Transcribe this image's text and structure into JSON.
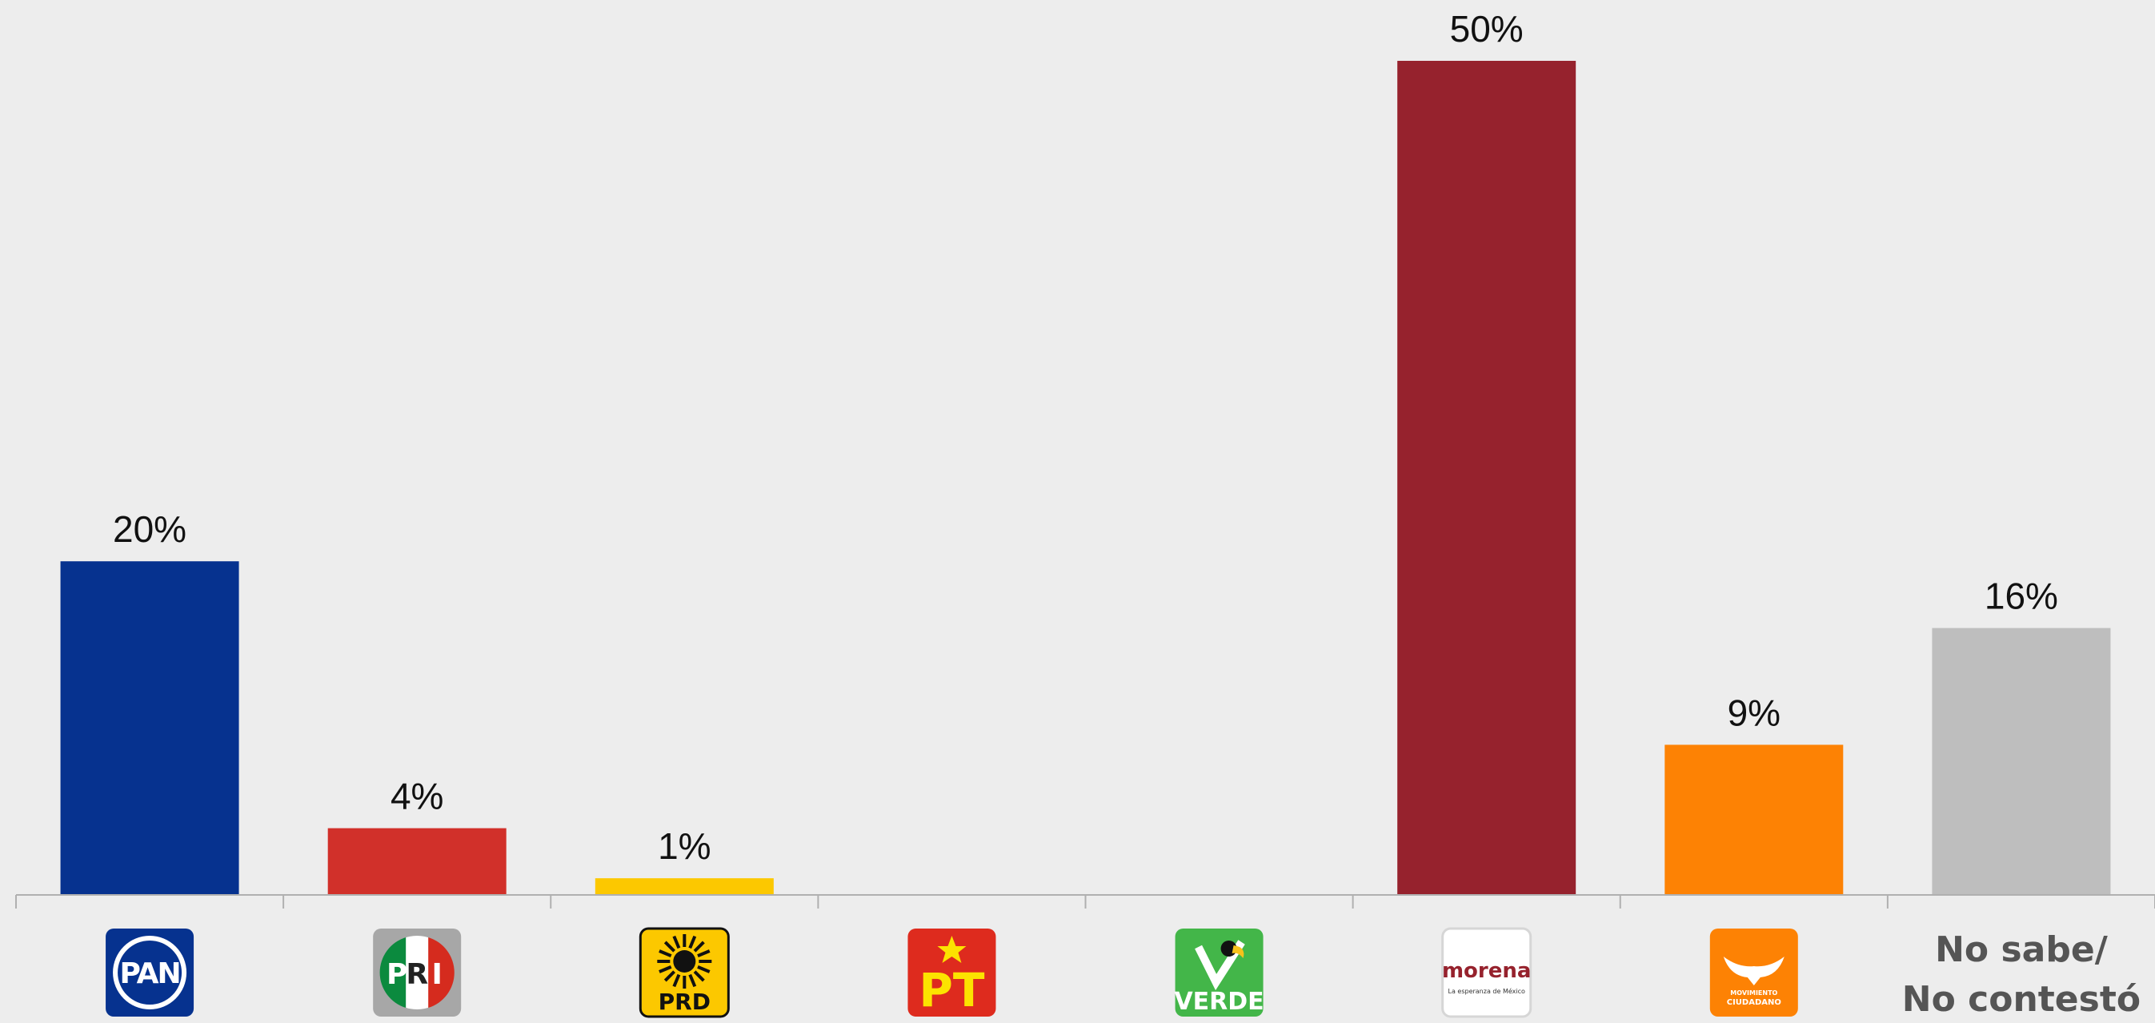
{
  "chart_data": {
    "type": "bar",
    "categories": [
      "PAN",
      "PRI",
      "PRD",
      "PT",
      "VERDE",
      "morena",
      "MOVIMIENTO CIUDADANO",
      "No sabe/ No contestó"
    ],
    "values": [
      20,
      4,
      1,
      null,
      null,
      50,
      9,
      16
    ],
    "value_labels": [
      "20%",
      "4%",
      "1%",
      "",
      "",
      "50%",
      "9%",
      "16%"
    ],
    "colors": [
      "#06328f",
      "#d1302a",
      "#fcc800",
      "#de2b1e",
      "#43b649",
      "#96222d",
      "#fd8204",
      "#bebebe"
    ],
    "ylim": [
      0,
      50
    ],
    "grid": false,
    "legend": "none",
    "category_logos": [
      {
        "type": "logo",
        "icon": "pan-logo",
        "text": "PAN",
        "color": "#06328f"
      },
      {
        "type": "logo",
        "icon": "pri-logo",
        "text": "PRI",
        "color": "#a7a7a7"
      },
      {
        "type": "logo",
        "icon": "prd-logo",
        "text": "PRD",
        "color": "#fcc800"
      },
      {
        "type": "logo",
        "icon": "pt-logo",
        "text": "PT",
        "color": "#de2b1e"
      },
      {
        "type": "logo",
        "icon": "verde-logo",
        "text": "VERDE",
        "color": "#43b649"
      },
      {
        "type": "logo",
        "icon": "morena-logo",
        "text": "morena",
        "subtext": "La esperanza de México",
        "color": "#ffffff"
      },
      {
        "type": "logo",
        "icon": "movimiento-ciudadano-logo",
        "text": "MOVIMIENTO CIUDADANO",
        "color": "#fd8204"
      },
      {
        "type": "text",
        "lines": [
          "No sabe/",
          "No contestó"
        ]
      }
    ]
  }
}
